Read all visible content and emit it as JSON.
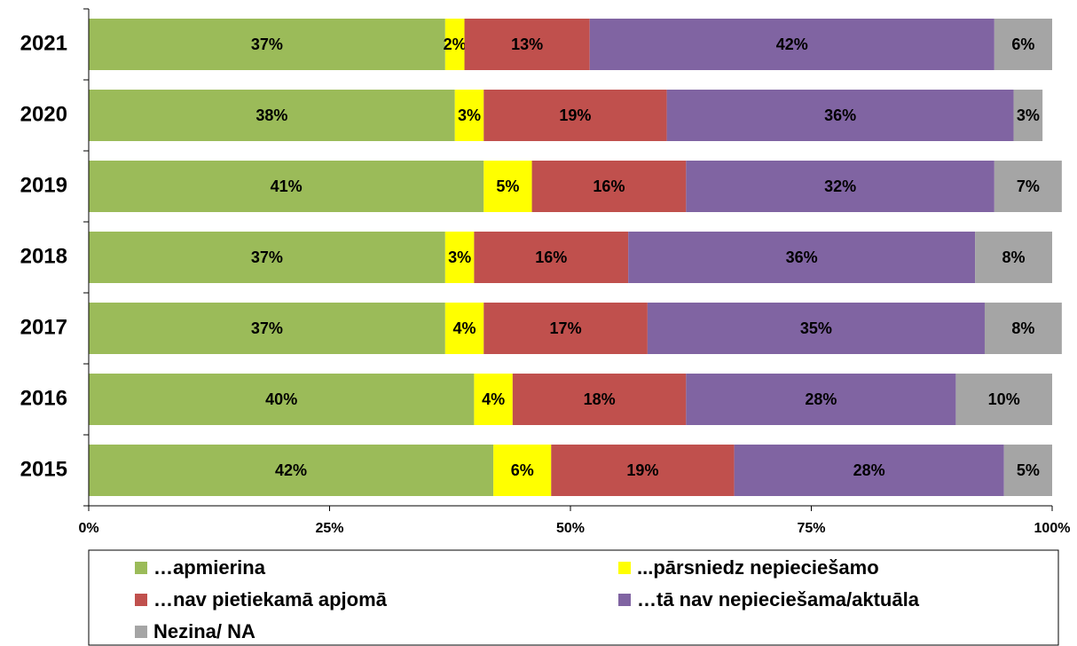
{
  "chart_data": {
    "type": "stacked_hbar",
    "categories": [
      "2021",
      "2020",
      "2019",
      "2018",
      "2017",
      "2016",
      "2015"
    ],
    "series": [
      {
        "name": "…apmierina",
        "color": "#9bbb59",
        "values": [
          37,
          38,
          41,
          37,
          37,
          40,
          42
        ],
        "value_labels": [
          "37%",
          "38%",
          "41%",
          "37%",
          "37%",
          "40%",
          "42%"
        ]
      },
      {
        "name": "...pārsniedz nepieciešamo",
        "color": "#ffff00",
        "values": [
          2,
          3,
          5,
          3,
          4,
          4,
          6
        ],
        "value_labels": [
          "2%",
          "3%",
          "5%",
          "3%",
          "4%",
          "4%",
          "6%"
        ]
      },
      {
        "name": "…nav pietiekamā apjomā",
        "color": "#c0504d",
        "values": [
          13,
          19,
          16,
          16,
          17,
          18,
          19
        ],
        "value_labels": [
          "13%",
          "19%",
          "16%",
          "16%",
          "17%",
          "18%",
          "19%"
        ]
      },
      {
        "name": "…tā nav nepieciešama/aktuāla",
        "color": "#8064a2",
        "values": [
          42,
          36,
          32,
          36,
          35,
          28,
          28
        ],
        "value_labels": [
          "42%",
          "36%",
          "32%",
          "36%",
          "35%",
          "28%",
          "28%"
        ]
      },
      {
        "name": "Nezina/ NA",
        "color": "#a5a5a5",
        "values": [
          6,
          3,
          7,
          8,
          8,
          10,
          5
        ],
        "value_labels": [
          "6%",
          "3%",
          "7%",
          "8%",
          "8%",
          "10%",
          "5%"
        ]
      }
    ],
    "xlim": [
      0,
      100
    ],
    "xticks": [
      {
        "value": 0,
        "label": "0%"
      },
      {
        "value": 25,
        "label": "25%"
      },
      {
        "value": 50,
        "label": "50%"
      },
      {
        "value": 75,
        "label": "75%"
      },
      {
        "value": 100,
        "label": "100%"
      }
    ]
  }
}
